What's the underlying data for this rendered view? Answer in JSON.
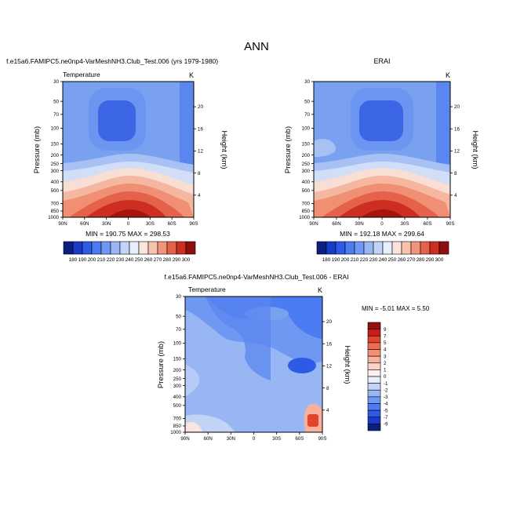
{
  "page_title": "ANN",
  "chart_data": [
    {
      "type": "heatmap",
      "title_left": "f.e15a6.FAMIPC5.ne0np4-VarMeshNH3.Club_Test.006 (yrs 1979-1980)",
      "subtitle": "Temperature",
      "units": "K",
      "ylabel": "Pressure (mb)",
      "ylabel_right": "Height (km)",
      "x_ticks": [
        "90N",
        "60N",
        "30N",
        "0",
        "30S",
        "60S",
        "90S"
      ],
      "y_ticks": [
        "30",
        "50",
        "70",
        "100",
        "150",
        "200",
        "250",
        "300",
        "400",
        "500",
        "700",
        "850",
        "1000"
      ],
      "y_ticks_right": [
        "20",
        "16",
        "12",
        "8",
        "4"
      ],
      "stats": "MIN = 190.75  MAX = 298.53"
    },
    {
      "type": "heatmap",
      "title_center": "ERAI",
      "units": "K",
      "ylabel": "Pressure (mb)",
      "ylabel_right": "Height (km)",
      "x_ticks": [
        "90N",
        "60N",
        "30N",
        "0",
        "30S",
        "60S",
        "90S"
      ],
      "y_ticks": [
        "30",
        "50",
        "70",
        "100",
        "150",
        "200",
        "250",
        "300",
        "400",
        "500",
        "700",
        "850",
        "1000"
      ],
      "y_ticks_right": [
        "20",
        "16",
        "12",
        "8",
        "4"
      ],
      "stats": "MIN = 192.18  MAX = 299.64"
    },
    {
      "type": "heatmap",
      "title_center": "f.e15a6.FAMIPC5.ne0np4-VarMeshNH3.Club_Test.006 - ERAI",
      "subtitle": "Temperature",
      "units": "K",
      "ylabel": "Pressure (mb)",
      "ylabel_right": "Height (km)",
      "x_ticks": [
        "90N",
        "60N",
        "30N",
        "0",
        "30S",
        "60S",
        "90S"
      ],
      "y_ticks": [
        "30",
        "50",
        "70",
        "100",
        "150",
        "200",
        "250",
        "300",
        "400",
        "500",
        "700",
        "850",
        "1000"
      ],
      "y_ticks_right": [
        "20",
        "16",
        "12",
        "8",
        "4"
      ],
      "stats": "MIN = -5.01  MAX =  5.50"
    }
  ],
  "colorbar_abs": {
    "labels": [
      "180",
      "190",
      "200",
      "210",
      "220",
      "230",
      "240",
      "250",
      "260",
      "270",
      "280",
      "290",
      "300"
    ],
    "colors": [
      "#0a1f80",
      "#1a3bc8",
      "#2d5ae6",
      "#4c7cf2",
      "#6f98f2",
      "#98b6f4",
      "#c2d4f6",
      "#e8eefc",
      "#fbe4dc",
      "#f7c1ac",
      "#f0957a",
      "#e4614a",
      "#cc2e22",
      "#8e0f0f"
    ]
  },
  "colorbar_diff": {
    "labels": [
      "9",
      "7",
      "5",
      "4",
      "3",
      "2",
      "1",
      "0",
      "-1",
      "-2",
      "-3",
      "-4",
      "-5",
      "-7",
      "-9"
    ],
    "colors": [
      "#9a0e0e",
      "#c51e1a",
      "#e2442e",
      "#ef6c4f",
      "#f48e74",
      "#f7b19c",
      "#fad3c6",
      "#fbf1ec",
      "#e8eefc",
      "#c2d4f6",
      "#98b6f4",
      "#6f98f2",
      "#4c7cf2",
      "#2d5ae6",
      "#1a3bc8",
      "#0a1f80"
    ]
  }
}
